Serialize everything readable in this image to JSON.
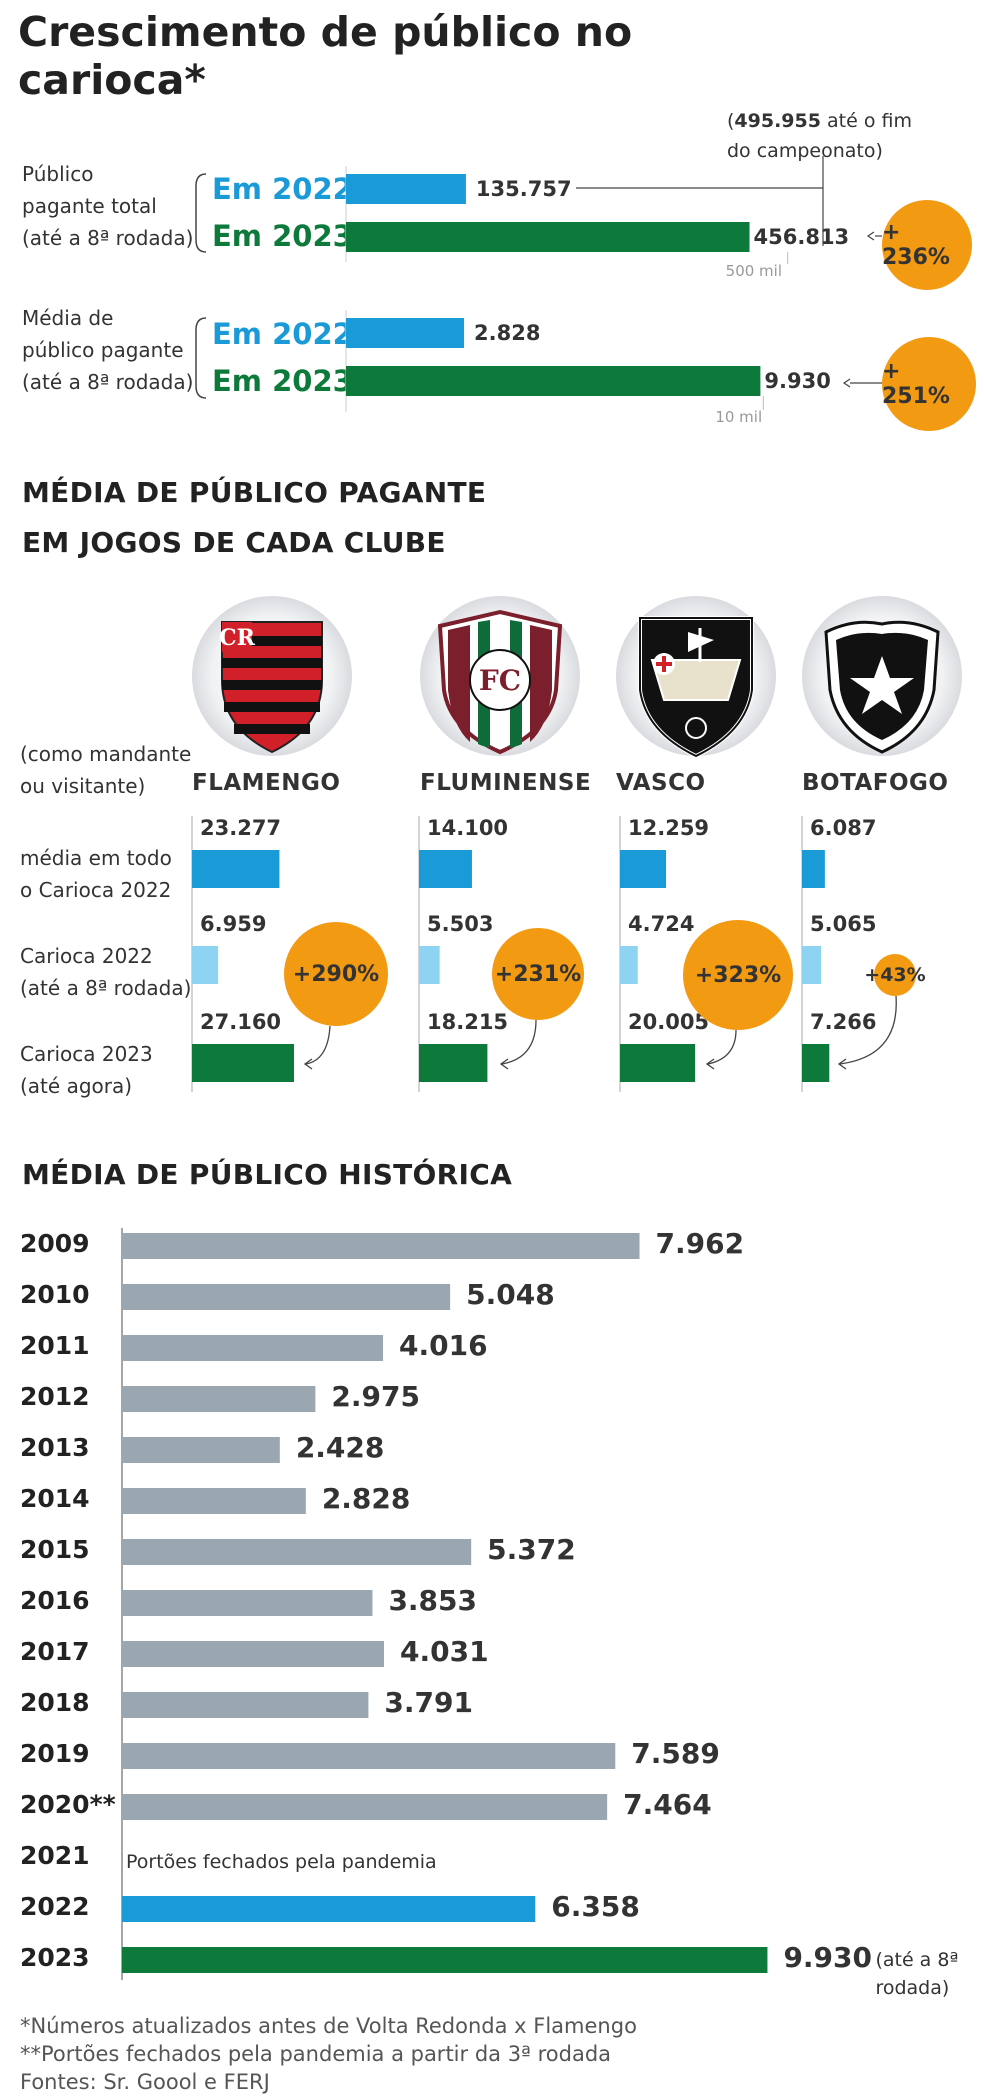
{
  "title": "Crescimento de público no carioca*",
  "top": {
    "annotation_total_final_bold": "495.955",
    "annotation_total_final_rest": " até o fim",
    "annotation_total_final_line2": "do campeonato)",
    "annotation_open_paren": "(",
    "groups": [
      {
        "label_lines": [
          "Público",
          "pagante total",
          "(até a 8ª rodada)"
        ],
        "rows": [
          {
            "year_label": "Em 2022",
            "value": 135757,
            "value_label": "135.757"
          },
          {
            "year_label": "Em 2023",
            "value": 456813,
            "value_label": "456.813"
          }
        ],
        "tick_label": "500 mil",
        "tick_value": 500000,
        "max": 600000,
        "growth": "+ 236%"
      },
      {
        "label_lines": [
          "Média de",
          "público pagante",
          "(até a 8ª rodada)"
        ],
        "rows": [
          {
            "year_label": "Em 2022",
            "value": 2828,
            "value_label": "2.828"
          },
          {
            "year_label": "Em 2023",
            "value": 9930,
            "value_label": "9.930"
          }
        ],
        "tick_label": "10 mil",
        "tick_value": 10000,
        "max": 12700,
        "growth": "+ 251%"
      }
    ]
  },
  "clubs_section": {
    "heading_line1": "MÉDIA DE PÚBLICO PAGANTE",
    "heading_line2": "EM JOGOS DE CADA CLUBE",
    "note_lines": [
      "(como mandante",
      "ou visitante)"
    ],
    "row_labels": [
      [
        "média em todo",
        "o Carioca 2022"
      ],
      [
        "Carioca 2022",
        "(até a 8ª rodada)"
      ],
      [
        "Carioca 2023",
        "(até agora)"
      ]
    ],
    "max": 27160,
    "clubs": [
      {
        "name": "FLAMENGO",
        "values": [
          23277,
          6959,
          27160
        ],
        "labels": [
          "23.277",
          "6.959",
          "27.160"
        ],
        "growth": "+290%",
        "logo": "flamengo-crest-icon"
      },
      {
        "name": "FLUMINENSE",
        "values": [
          14100,
          5503,
          18215
        ],
        "labels": [
          "14.100",
          "5.503",
          "18.215"
        ],
        "growth": "+231%",
        "logo": "fluminense-crest-icon"
      },
      {
        "name": "VASCO",
        "values": [
          12259,
          4724,
          20005
        ],
        "labels": [
          "12.259",
          "4.724",
          "20.005"
        ],
        "growth": "+323%",
        "logo": "vasco-crest-icon"
      },
      {
        "name": "BOTAFOGO",
        "values": [
          6087,
          5065,
          7266
        ],
        "labels": [
          "6.087",
          "5.065",
          "7.266"
        ],
        "growth": "+43%",
        "logo": "botafogo-crest-icon"
      }
    ]
  },
  "history_section": {
    "heading": "MÉDIA DE PÚBLICO HISTÓRICA",
    "suffix_2023": "(até a 8ª rodada)",
    "closed_note": "Portões fechados pela pandemia"
  },
  "chart_data": {
    "type": "bar",
    "title": "MÉDIA DE PÚBLICO HISTÓRICA",
    "orientation": "horizontal",
    "categories": [
      "2009",
      "2010",
      "2011",
      "2012",
      "2013",
      "2014",
      "2015",
      "2016",
      "2017",
      "2018",
      "2019",
      "2020**",
      "2021",
      "2022",
      "2023"
    ],
    "values": [
      7962,
      5048,
      4016,
      2975,
      2428,
      2828,
      5372,
      3853,
      4031,
      3791,
      7589,
      7464,
      null,
      6358,
      9930
    ],
    "value_labels": [
      "7.962",
      "5.048",
      "4.016",
      "2.975",
      "2.428",
      "2.828",
      "5.372",
      "3.853",
      "4.031",
      "3.791",
      "7.589",
      "7.464",
      "",
      "6.358",
      "9.930"
    ],
    "bar_types": [
      "hist",
      "hist",
      "hist",
      "hist",
      "hist",
      "hist",
      "hist",
      "hist",
      "hist",
      "hist",
      "hist",
      "hist",
      "none",
      "y2022",
      "y2023"
    ],
    "xlim": [
      0,
      10000
    ],
    "grid": false
  },
  "footnotes": [
    "*Números atualizados antes de Volta Redonda x Flamengo",
    "**Portões fechados pela pandemia a partir da 3ª rodada",
    "Fontes: Sr. Goool e FERJ"
  ],
  "colors": {
    "blue": "#1a9ad7",
    "green": "#0d7a3b",
    "light_blue": "#8fd3f2",
    "gray_bar": "#9aa7b0",
    "orange": "#f29a12"
  }
}
